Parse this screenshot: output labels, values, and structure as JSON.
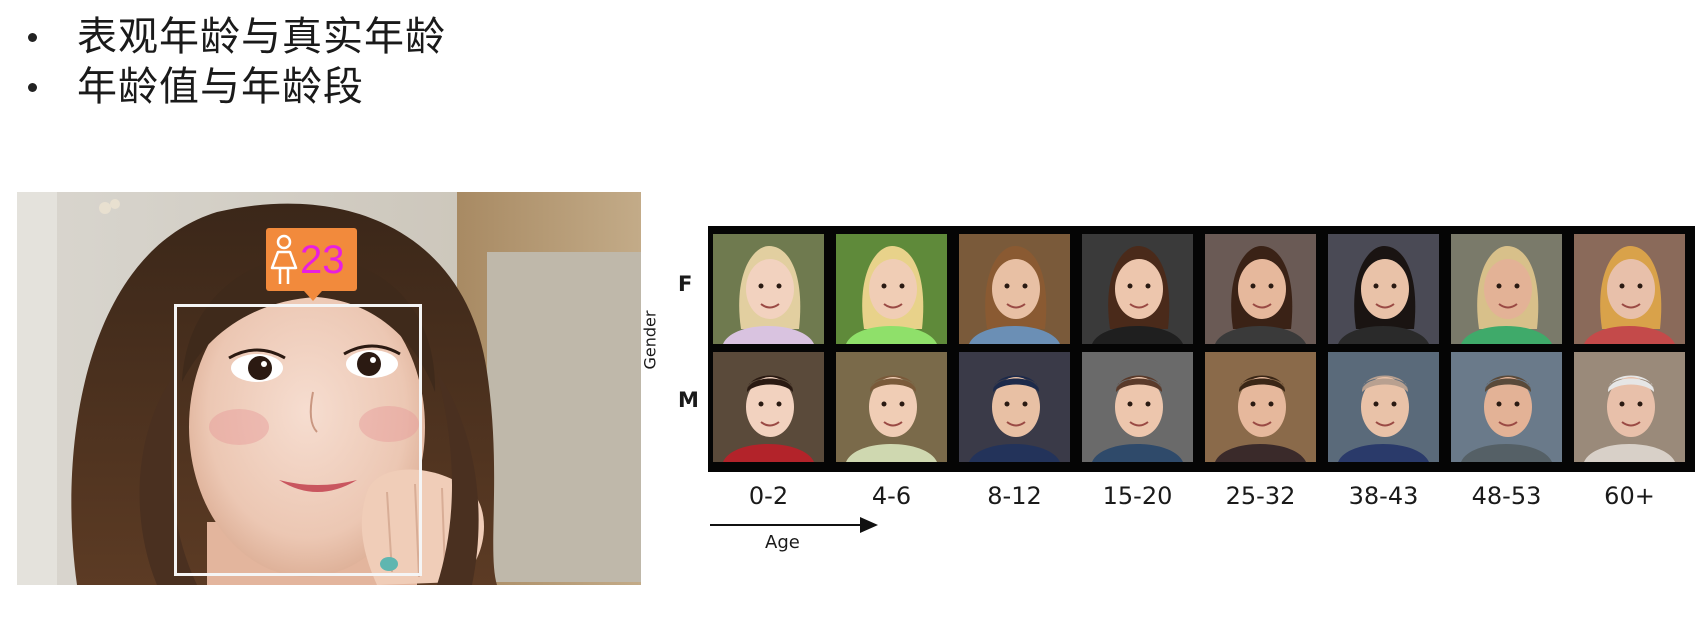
{
  "bullets": [
    {
      "text": "表观年龄与真实年龄"
    },
    {
      "text": "年龄值与年龄段"
    }
  ],
  "photo": {
    "age_tag": {
      "icon": "female-person-icon",
      "value": "23"
    },
    "colors": {
      "tag": "#f28a3c",
      "value": "#e81fe0",
      "box": "#f5f5f5"
    }
  },
  "age_grid": {
    "y_axis_label": "Gender",
    "x_axis_label": "Age",
    "rows": [
      {
        "label": "F"
      },
      {
        "label": "M"
      }
    ],
    "age_groups": [
      "0-2",
      "4-6",
      "8-12",
      "15-20",
      "25-32",
      "38-43",
      "48-53",
      "60+"
    ]
  }
}
